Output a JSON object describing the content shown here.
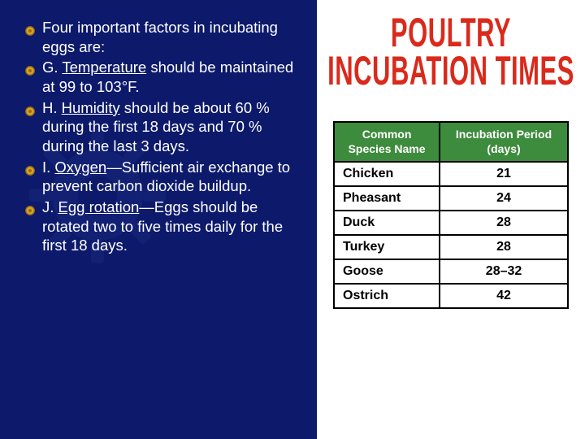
{
  "bullets": [
    {
      "prefix": "",
      "key": "",
      "rest": "Four important factors in incubating eggs are:"
    },
    {
      "prefix": "G. ",
      "key": "Temperature",
      "rest": " should be maintained at 99 to 103°F."
    },
    {
      "prefix": "H. ",
      "key": "Humidity",
      "rest": " should be about 60 % during the first 18 days and 70 % during the last 3 days."
    },
    {
      "prefix": "I. ",
      "key": "Oxygen",
      "rest": "—Sufficient air exchange to prevent carbon dioxide buildup."
    },
    {
      "prefix": "J. ",
      "key": "Egg rotation",
      "rest": "—Eggs should be rotated two to five times daily for the first 18 days."
    }
  ],
  "title": {
    "line1": "POULTRY",
    "line2": "INCUBATION TIMES"
  },
  "table": {
    "headers": {
      "col1a": "Common",
      "col1b": "Species Name",
      "col2a": "Incubation Period",
      "col2b": "(days)"
    },
    "rows": [
      {
        "species": "Chicken",
        "days": "21"
      },
      {
        "species": "Pheasant",
        "days": "24"
      },
      {
        "species": "Duck",
        "days": "28"
      },
      {
        "species": "Turkey",
        "days": "28"
      },
      {
        "species": "Goose",
        "days": "28–32"
      },
      {
        "species": "Ostrich",
        "days": "42"
      }
    ]
  },
  "colors": {
    "slide_bg": "#0d1a6b",
    "title_color": "#d92a1c",
    "table_header_bg": "#3d8b3d",
    "bullet_fill": "#d4a52a",
    "bullet_stroke": "#a06f13"
  }
}
